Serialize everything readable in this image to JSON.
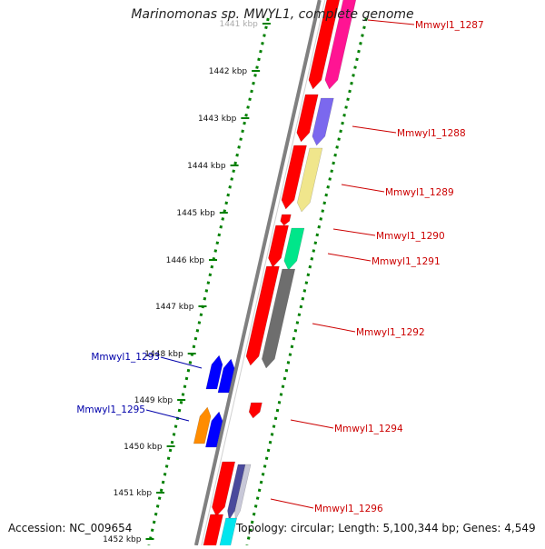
{
  "title": "Marinomonas sp. MWYL1, complete genome",
  "footer": {
    "accession": "Accession: NC_009654",
    "topology": "Topology: circular; Length: 5,100,344 bp; Genes: 4,549"
  },
  "colors": {
    "red": "#ff0000",
    "magenta": "#ff1493",
    "purple": "#7b68ee",
    "khaki": "#f0e68c",
    "seagreen": "#00e68a",
    "gray": "#6e6e6e",
    "blue": "#0000ff",
    "orange": "#ff8c00",
    "cyan": "#00e5ee",
    "silver": "#c8c8d8",
    "navy": "#4a4a9c",
    "backbone": "#808080",
    "tick": "#008000",
    "forward_label": "#cc0000",
    "reverse_label": "#0000aa"
  },
  "ruler": [
    {
      "label": "1441 kbp"
    },
    {
      "label": "1442 kbp"
    },
    {
      "label": "1443 kbp"
    },
    {
      "label": "1444 kbp"
    },
    {
      "label": "1445 kbp"
    },
    {
      "label": "1446 kbp"
    },
    {
      "label": "1447 kbp"
    },
    {
      "label": "1448 kbp"
    },
    {
      "label": "1449 kbp"
    },
    {
      "label": "1450 kbp"
    },
    {
      "label": "1451 kbp"
    },
    {
      "label": "1452 kbp"
    }
  ],
  "gene_labels": [
    {
      "text": "Mmwyl1_1287",
      "strand": "forward"
    },
    {
      "text": "Mmwyl1_1288",
      "strand": "forward"
    },
    {
      "text": "Mmwyl1_1289",
      "strand": "forward"
    },
    {
      "text": "Mmwyl1_1290",
      "strand": "forward"
    },
    {
      "text": "Mmwyl1_1291",
      "strand": "forward"
    },
    {
      "text": "Mmwyl1_1292",
      "strand": "forward"
    },
    {
      "text": "Mmwyl1_1293",
      "strand": "reverse"
    },
    {
      "text": "Mmwyl1_1294",
      "strand": "forward"
    },
    {
      "text": "Mmwyl1_1295",
      "strand": "reverse"
    },
    {
      "text": "Mmwyl1_1296",
      "strand": "forward"
    }
  ]
}
